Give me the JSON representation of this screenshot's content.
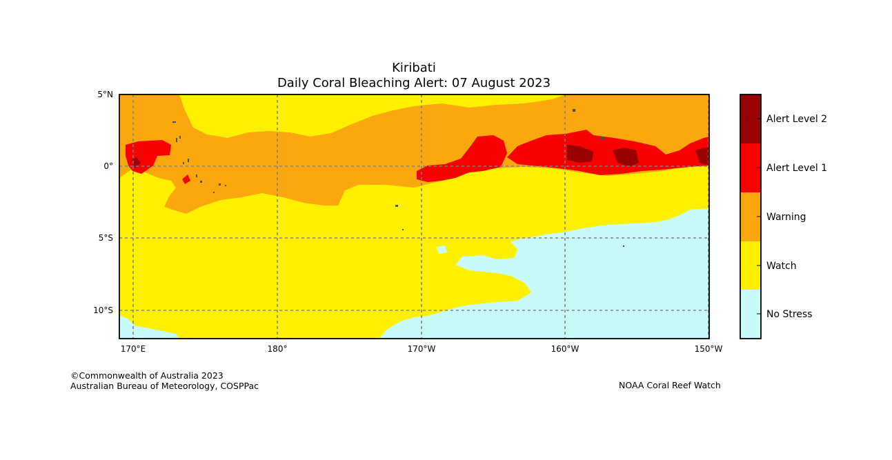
{
  "title": "Kiribati",
  "subtitle": "Daily Coral Bleaching Alert: 07 August 2023",
  "map": {
    "lon_ticks": [
      "170°E",
      "180°",
      "170°W",
      "160°W",
      "150°W"
    ],
    "lat_ticks": [
      "5°N",
      "0°",
      "5°S",
      "10°S"
    ],
    "grid": true,
    "extent": {
      "lon_min": 169,
      "lon_max": 210,
      "lat_min": -12,
      "lat_max": 5
    }
  },
  "legend": {
    "items": [
      {
        "label": "Alert Level 2",
        "color": "#990000"
      },
      {
        "label": "Alert Level 1",
        "color": "#f70000"
      },
      {
        "label": "Warning",
        "color": "#fba70e"
      },
      {
        "label": "Watch",
        "color": "#fff000"
      },
      {
        "label": "No Stress",
        "color": "#c8fafa"
      }
    ]
  },
  "credits": {
    "left_line1": "©Commonwealth of Australia 2023",
    "left_line2": "Australian Bureau of Meteorology, COSPPac",
    "right": "NOAA Coral Reef Watch"
  },
  "colors": {
    "land": "#4d4d4d",
    "grid": "#808080"
  }
}
